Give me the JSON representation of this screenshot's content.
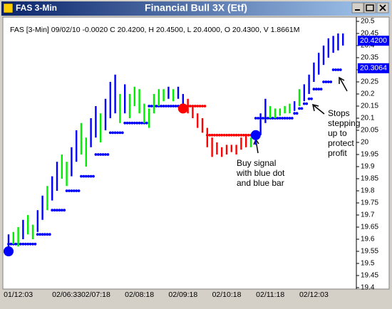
{
  "window": {
    "icon_text": "FAS 3-Min",
    "title": "Financial Bull 3X (Etf)"
  },
  "chart_data": {
    "type": "range-bar",
    "header": "FAS [3-Min] 09/02/10  -0.0020 C 20.4200, H 20.4500, L 20.4000, O 20.4300, V 1.8661M",
    "categories": [
      null,
      null,
      "01/12:03",
      null,
      null,
      null,
      null,
      null,
      null,
      null,
      null,
      null,
      "02/06:33",
      null,
      null,
      null,
      null,
      null,
      "02/07:18",
      null,
      null,
      null,
      null,
      null,
      null,
      null,
      null,
      "02/08:18",
      null,
      null,
      null,
      null,
      null,
      null,
      null,
      null,
      "02/09:18",
      null,
      null,
      null,
      null,
      null,
      null,
      null,
      null,
      "02/10:18",
      null,
      null,
      null,
      null,
      null,
      null,
      null,
      null,
      "02/11:18",
      null,
      null,
      null,
      null,
      null,
      null,
      null,
      null,
      "02/12:03",
      null,
      null,
      null,
      null,
      null,
      null
    ],
    "lows": [
      19.56,
      19.58,
      19.57,
      19.6,
      19.62,
      19.6,
      19.63,
      19.68,
      19.72,
      19.76,
      19.8,
      19.85,
      19.82,
      19.86,
      19.92,
      19.95,
      19.9,
      19.98,
      20.02,
      20.0,
      20.05,
      20.1,
      20.12,
      20.08,
      20.12,
      20.1,
      20.15,
      20.12,
      20.08,
      20.06,
      20.12,
      20.15,
      20.17,
      20.18,
      20.17,
      20.18,
      20.15,
      20.12,
      20.1,
      20.06,
      20.04,
      19.98,
      19.94,
      19.95,
      19.94,
      19.95,
      19.96,
      19.95,
      19.97,
      19.98,
      19.98,
      19.99,
      20.03,
      20.08,
      20.1,
      20.1,
      20.11,
      20.12,
      20.12,
      20.13,
      20.15,
      20.17,
      20.2,
      20.25,
      20.28,
      20.32,
      20.35,
      20.37,
      20.38,
      20.4
    ],
    "highs": [
      19.62,
      19.63,
      19.65,
      19.68,
      19.7,
      19.66,
      19.72,
      19.78,
      19.82,
      19.86,
      19.92,
      19.95,
      19.92,
      19.98,
      20.05,
      20.08,
      20.02,
      20.1,
      20.15,
      20.12,
      20.18,
      20.25,
      20.28,
      20.2,
      20.24,
      20.2,
      20.23,
      20.22,
      20.16,
      20.14,
      20.2,
      20.22,
      20.22,
      20.23,
      20.22,
      20.23,
      20.2,
      20.18,
      20.15,
      20.12,
      20.1,
      20.06,
      20.02,
      20.0,
      19.98,
      19.99,
      19.99,
      19.99,
      20.02,
      20.03,
      20.02,
      20.05,
      20.12,
      20.18,
      20.15,
      20.14,
      20.14,
      20.15,
      20.16,
      20.17,
      20.22,
      20.24,
      20.28,
      20.33,
      20.37,
      20.4,
      20.43,
      20.44,
      20.45,
      20.45
    ],
    "bar_colors": [
      "#0000ff",
      "#00ee00",
      "#00ee00",
      "#0000ff",
      "#00ee00",
      "#00ee00",
      "#0000ff",
      "#0000ff",
      "#00ee00",
      "#0000ff",
      "#0000ff",
      "#00ee00",
      "#00ee00",
      "#0000ff",
      "#0000ff",
      "#00ee00",
      "#00ee00",
      "#0000ff",
      "#0000ff",
      "#00ee00",
      "#0000ff",
      "#0000ff",
      "#0000ff",
      "#00ee00",
      "#0000ff",
      "#00ee00",
      "#00ee00",
      "#00ee00",
      "#00ee00",
      "#00ee00",
      "#00ee00",
      "#00ee00",
      "#00ee00",
      "#0000ff",
      "#00ee00",
      "#0000ff",
      "#0000ff",
      "#ff0000",
      "#ff0000",
      "#ff0000",
      "#ff0000",
      "#ff0000",
      "#ff0000",
      "#ff0000",
      "#ff0000",
      "#ff0000",
      "#ff0000",
      "#ff0000",
      "#ff0000",
      "#ff0000",
      "#00ee00",
      "#0000ff",
      "#0000ff",
      "#0000ff",
      "#00ee00",
      "#00ee00",
      "#00ee00",
      "#00ee00",
      "#00ee00",
      "#0000ff",
      "#00ee00",
      "#0000ff",
      "#0000ff",
      "#0000ff",
      "#0000ff",
      "#0000ff",
      "#0000ff",
      "#0000ff",
      "#0000ff",
      "#0000ff"
    ],
    "stops": [
      19.58,
      19.58,
      19.58,
      19.58,
      19.58,
      19.58,
      19.62,
      19.62,
      19.62,
      19.72,
      19.72,
      19.72,
      19.8,
      19.8,
      19.8,
      19.86,
      19.86,
      19.86,
      19.95,
      19.95,
      19.95,
      20.04,
      20.04,
      20.04,
      20.08,
      20.08,
      20.08,
      20.08,
      20.08,
      20.15,
      20.15,
      20.15,
      20.15,
      20.15,
      20.15,
      20.15,
      20.15,
      20.15,
      20.15,
      20.15,
      20.15,
      20.03,
      20.03,
      20.03,
      20.03,
      20.03,
      20.03,
      20.03,
      20.03,
      20.03,
      20.03,
      20.1,
      20.1,
      20.1,
      20.1,
      20.1,
      20.1,
      20.1,
      20.1,
      20.12,
      20.14,
      20.16,
      20.18,
      20.22,
      20.22,
      20.25,
      20.25,
      20.3,
      20.3,
      null
    ],
    "stop_colors": [
      "#0000ff",
      "#0000ff",
      "#0000ff",
      "#0000ff",
      "#0000ff",
      "#0000ff",
      "#0000ff",
      "#0000ff",
      "#0000ff",
      "#0000ff",
      "#0000ff",
      "#0000ff",
      "#0000ff",
      "#0000ff",
      "#0000ff",
      "#0000ff",
      "#0000ff",
      "#0000ff",
      "#0000ff",
      "#0000ff",
      "#0000ff",
      "#0000ff",
      "#0000ff",
      "#0000ff",
      "#0000ff",
      "#0000ff",
      "#0000ff",
      "#0000ff",
      "#0000ff",
      "#0000ff",
      "#0000ff",
      "#0000ff",
      "#0000ff",
      "#0000ff",
      "#0000ff",
      "#0000ff",
      "#0000ff",
      "#ff0000",
      "#ff0000",
      "#ff0000",
      "#ff0000",
      "#ff0000",
      "#ff0000",
      "#ff0000",
      "#ff0000",
      "#ff0000",
      "#ff0000",
      "#ff0000",
      "#ff0000",
      "#ff0000",
      "#ff0000",
      "#0000ff",
      "#0000ff",
      "#0000ff",
      "#0000ff",
      "#0000ff",
      "#0000ff",
      "#0000ff",
      "#0000ff",
      "#0000ff",
      "#0000ff",
      "#0000ff",
      "#0000ff",
      "#0000ff",
      "#0000ff",
      "#0000ff",
      "#0000ff",
      "#0000ff",
      "#0000ff",
      "#0000ff"
    ],
    "signals": {
      "x": [
        0,
        36,
        51
      ],
      "values": [
        19.55,
        20.14,
        20.03
      ],
      "colors": [
        "#0000ff",
        "#ff0000",
        "#0000ff"
      ]
    },
    "last_price": {
      "value": 20.42,
      "label": "20.4200"
    },
    "stop_price": {
      "value": 20.3064,
      "label": "20.3064"
    },
    "ylim": [
      19.4,
      20.5
    ],
    "yticks": [
      19.4,
      19.45,
      19.5,
      19.55,
      19.6,
      19.65,
      19.7,
      19.75,
      19.8,
      19.85,
      19.9,
      19.95,
      20,
      20.05,
      20.1,
      20.15,
      20.2,
      20.25,
      20.3,
      20.35,
      20.4,
      20.45,
      20.5
    ],
    "annotations": [
      {
        "lines": [
          "Buy signal",
          "with blue dot",
          "and blue bar"
        ]
      },
      {
        "lines": [
          "Stops",
          "stepping",
          "up to",
          "protect",
          "profit"
        ]
      }
    ]
  }
}
